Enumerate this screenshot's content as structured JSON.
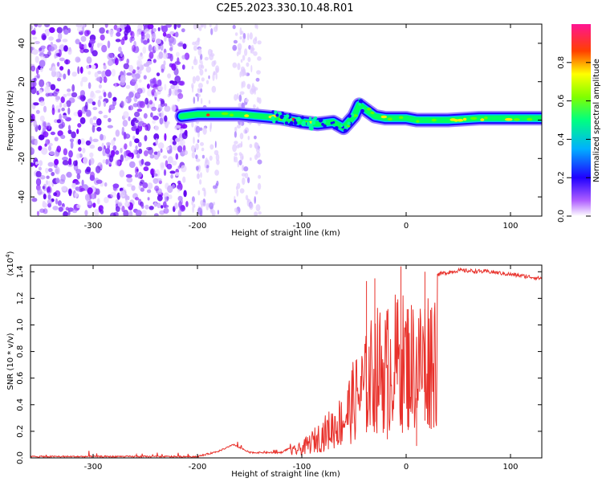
{
  "title": "C2E5.2023.330.10.48.R01",
  "chart_data": [
    {
      "type": "heatmap",
      "xlabel": "Height of straight line (km)",
      "ylabel": "Frequency (Hz)",
      "xlim": [
        -360,
        130
      ],
      "ylim": [
        -50,
        50
      ],
      "xticks": [
        -300,
        -200,
        -100,
        0,
        100
      ],
      "yticks": [
        -40,
        -20,
        0,
        20,
        40
      ],
      "colorbar": {
        "label": "Normalized spectral amplitude",
        "range": [
          0.0,
          1.0
        ],
        "ticks": [
          "0.0",
          "0.2",
          "0.4",
          "0.6",
          "0.8"
        ],
        "colors": [
          "#ffffff",
          "#8a00ff",
          "#0000ff",
          "#00ffff",
          "#00ff00",
          "#ffff00",
          "#ff0000",
          "#ff1493"
        ]
      },
      "noise_region": {
        "x_from": -360,
        "x_to": -210,
        "amplitude": 0.25
      },
      "faint_bands": [
        [
          -205,
          -180
        ],
        [
          -165,
          -140
        ]
      ],
      "ridge": [
        [
          -215,
          2
        ],
        [
          -200,
          3
        ],
        [
          -180,
          3
        ],
        [
          -160,
          3
        ],
        [
          -140,
          2
        ],
        [
          -120,
          1
        ],
        [
          -100,
          -1
        ],
        [
          -85,
          -2
        ],
        [
          -70,
          -1
        ],
        [
          -60,
          -4
        ],
        [
          -50,
          2
        ],
        [
          -45,
          8
        ],
        [
          -40,
          6
        ],
        [
          -30,
          2
        ],
        [
          -20,
          1
        ],
        [
          -10,
          1
        ],
        [
          0,
          1
        ],
        [
          10,
          0
        ],
        [
          40,
          0
        ],
        [
          70,
          1
        ],
        [
          100,
          1
        ],
        [
          130,
          1
        ]
      ]
    },
    {
      "type": "line",
      "xlabel": "Height of straight line (km)",
      "ylabel": "SNR (10 * v/v)",
      "yunit": "(x10",
      "yunit_exp": "4",
      "yunit_close": ")",
      "xlim": [
        -360,
        130
      ],
      "ylim": [
        0.0,
        1.45
      ],
      "xticks": [
        -300,
        -200,
        -100,
        0,
        100
      ],
      "yticks": [
        "0.0",
        "0.2",
        "0.4",
        "0.6",
        "0.8",
        "1.0",
        "1.2",
        "1.4"
      ],
      "series": [
        {
          "color": "#e8312b",
          "envelope": [
            [
              -360,
              0.01
            ],
            [
              -200,
              0.01
            ],
            [
              -180,
              0.05
            ],
            [
              -165,
              0.1
            ],
            [
              -150,
              0.04
            ],
            [
              -120,
              0.04
            ],
            [
              -100,
              0.12
            ],
            [
              -80,
              0.3
            ],
            [
              -60,
              0.5
            ],
            [
              -50,
              0.75
            ],
            [
              -40,
              0.9
            ],
            [
              -30,
              1.15
            ],
            [
              -20,
              1.15
            ],
            [
              -10,
              1.25
            ],
            [
              0,
              1.25
            ],
            [
              10,
              1.2
            ],
            [
              20,
              1.3
            ],
            [
              30,
              1.38
            ],
            [
              50,
              1.41
            ],
            [
              80,
              1.4
            ],
            [
              100,
              1.38
            ],
            [
              130,
              1.35
            ]
          ],
          "spikes": [
            [
              -38,
              1.33
            ],
            [
              -30,
              1.35
            ],
            [
              -5,
              1.44
            ],
            [
              2,
              1.05
            ],
            [
              10,
              0.45
            ],
            [
              18,
              1.4
            ],
            [
              -18,
              0.7
            ]
          ]
        }
      ]
    }
  ]
}
